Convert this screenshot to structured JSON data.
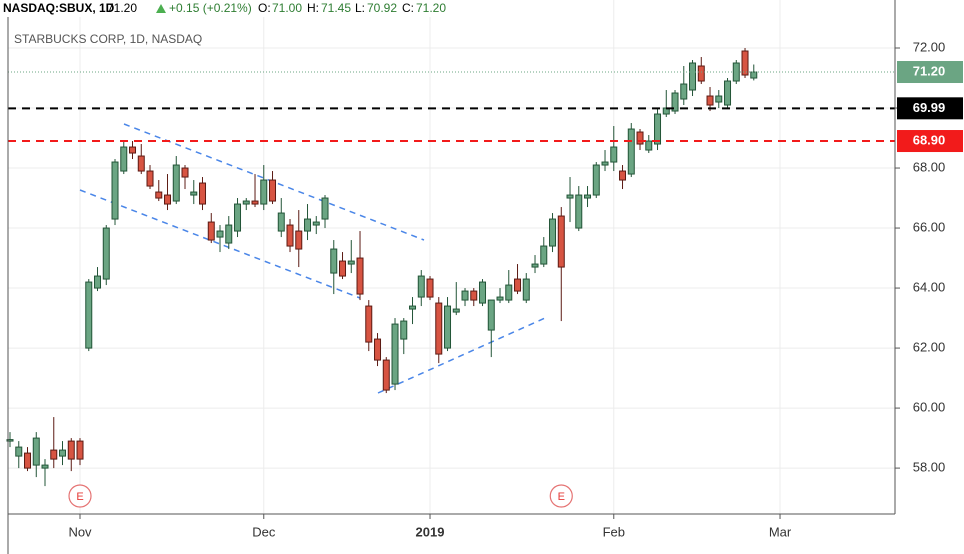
{
  "chart_data": {
    "type": "candlestick",
    "header": {
      "symbol": "NASDAQ:SBUX, 1D",
      "last": "71.20",
      "change": "+0.15 (+0.21%)",
      "o_label": "O:",
      "o": "71.00",
      "h_label": "H:",
      "h": "71.45",
      "l_label": "L:",
      "l": "70.92",
      "c_label": "C:",
      "c": "71.20"
    },
    "watermark": "STARBUCKS CORP, 1D, NASDAQ",
    "ylim": [
      56.47,
      73.6
    ],
    "yticks": [
      {
        "value": 58,
        "label": "58.00"
      },
      {
        "value": 60,
        "label": "60.00"
      },
      {
        "value": 62,
        "label": "62.00"
      },
      {
        "value": 64,
        "label": "64.00"
      },
      {
        "value": 66,
        "label": "66.00"
      },
      {
        "value": 68,
        "label": "68.00"
      },
      {
        "value": 70,
        "label": "70.00"
      },
      {
        "value": 72,
        "label": "72.00"
      }
    ],
    "xlim": [
      -0.23,
      101.14
    ],
    "xticks": [
      {
        "value": 8,
        "label": "Nov"
      },
      {
        "value": 29,
        "label": "Dec"
      },
      {
        "value": 48,
        "label": "2019",
        "bold": true
      },
      {
        "value": 69,
        "label": "Feb"
      },
      {
        "value": 88,
        "label": "Mar"
      }
    ],
    "grid": true,
    "up_color": "#6ba583",
    "up_border": "#225437",
    "down_color": "#d75442",
    "down_border": "#5b1a13",
    "ohlc": [
      [
        58.9,
        59.2,
        58.7,
        58.95
      ],
      [
        58.4,
        58.9,
        58.0,
        58.7
      ],
      [
        58.5,
        58.7,
        57.9,
        58.0
      ],
      [
        58.1,
        59.2,
        57.7,
        59.0
      ],
      [
        58.0,
        58.3,
        57.4,
        58.1
      ],
      [
        58.6,
        59.7,
        58.0,
        58.3
      ],
      [
        58.4,
        58.9,
        58.1,
        58.6
      ],
      [
        58.9,
        59.0,
        57.9,
        58.3
      ],
      [
        58.9,
        59.0,
        58.1,
        58.3
      ],
      [
        62.0,
        64.3,
        61.9,
        64.2
      ],
      [
        64.0,
        64.7,
        63.9,
        64.4
      ],
      [
        64.3,
        66.1,
        64.1,
        66.0
      ],
      [
        66.3,
        68.3,
        66.1,
        68.2
      ],
      [
        67.9,
        68.9,
        67.8,
        68.7
      ],
      [
        68.7,
        68.9,
        68.3,
        68.5
      ],
      [
        68.4,
        68.8,
        67.8,
        67.9
      ],
      [
        67.9,
        68.1,
        67.3,
        67.4
      ],
      [
        67.2,
        67.6,
        66.9,
        67.0
      ],
      [
        67.1,
        67.8,
        66.6,
        66.8
      ],
      [
        66.9,
        68.4,
        66.8,
        68.1
      ],
      [
        68.0,
        68.1,
        67.3,
        67.7
      ],
      [
        67.1,
        67.6,
        66.8,
        67.2
      ],
      [
        67.5,
        67.7,
        66.6,
        66.8
      ],
      [
        66.2,
        66.5,
        65.5,
        65.6
      ],
      [
        65.7,
        66.1,
        65.2,
        65.9
      ],
      [
        65.5,
        66.4,
        65.3,
        66.1
      ],
      [
        65.9,
        67.0,
        65.7,
        66.8
      ],
      [
        66.8,
        67.0,
        66.6,
        66.9
      ],
      [
        66.9,
        67.8,
        66.7,
        66.8
      ],
      [
        66.8,
        68.1,
        66.6,
        67.6
      ],
      [
        67.6,
        67.9,
        66.8,
        66.9
      ],
      [
        65.9,
        67.0,
        65.7,
        66.5
      ],
      [
        66.1,
        66.3,
        65.2,
        65.4
      ],
      [
        65.9,
        66.6,
        64.7,
        65.3
      ],
      [
        65.9,
        66.8,
        65.6,
        66.3
      ],
      [
        66.1,
        66.4,
        65.8,
        66.2
      ],
      [
        66.3,
        67.1,
        66.0,
        67.0
      ],
      [
        64.5,
        65.6,
        63.8,
        65.3
      ],
      [
        64.9,
        65.2,
        64.3,
        64.4
      ],
      [
        64.8,
        65.6,
        64.5,
        64.9
      ],
      [
        65.0,
        65.9,
        63.6,
        63.8
      ],
      [
        63.4,
        63.6,
        61.9,
        62.2
      ],
      [
        62.3,
        62.5,
        61.4,
        61.6
      ],
      [
        61.6,
        61.7,
        60.5,
        60.6
      ],
      [
        60.8,
        63.0,
        60.6,
        62.8
      ],
      [
        62.3,
        63.0,
        61.8,
        62.9
      ],
      [
        63.3,
        63.7,
        62.8,
        63.4
      ],
      [
        63.7,
        64.6,
        63.4,
        64.4
      ],
      [
        64.3,
        64.4,
        63.6,
        63.7
      ],
      [
        63.5,
        63.7,
        61.5,
        61.8
      ],
      [
        62.0,
        63.7,
        61.9,
        63.4
      ],
      [
        63.2,
        64.2,
        63.1,
        63.3
      ],
      [
        63.6,
        64.0,
        63.4,
        63.9
      ],
      [
        63.9,
        64.0,
        63.4,
        63.6
      ],
      [
        63.5,
        64.3,
        63.4,
        64.2
      ],
      [
        62.6,
        63.6,
        61.7,
        63.6
      ],
      [
        63.6,
        64.0,
        63.5,
        63.7
      ],
      [
        63.6,
        64.6,
        63.5,
        64.1
      ],
      [
        64.3,
        64.8,
        63.8,
        63.9
      ],
      [
        63.6,
        64.5,
        63.5,
        64.3
      ],
      [
        64.7,
        65.1,
        64.5,
        64.8
      ],
      [
        64.8,
        65.7,
        64.7,
        65.4
      ],
      [
        65.4,
        66.5,
        65.2,
        66.3
      ],
      [
        66.4,
        66.7,
        62.9,
        64.7
      ],
      [
        67.0,
        67.7,
        66.2,
        67.1
      ],
      [
        66.0,
        67.4,
        65.9,
        67.1
      ],
      [
        67.0,
        67.4,
        66.7,
        67.1
      ],
      [
        67.1,
        68.2,
        67.0,
        68.1
      ],
      [
        68.1,
        68.6,
        67.9,
        68.2
      ],
      [
        68.2,
        69.4,
        67.9,
        68.7
      ],
      [
        67.9,
        68.1,
        67.3,
        67.6
      ],
      [
        67.8,
        69.5,
        67.7,
        69.3
      ],
      [
        69.2,
        69.3,
        68.6,
        68.8
      ],
      [
        68.6,
        69.1,
        68.5,
        68.9
      ],
      [
        68.8,
        70.0,
        68.6,
        69.8
      ],
      [
        69.8,
        70.6,
        69.7,
        70.0
      ],
      [
        69.9,
        70.6,
        69.8,
        70.5
      ],
      [
        70.3,
        71.4,
        70.1,
        70.8
      ],
      [
        70.6,
        71.6,
        70.4,
        71.5
      ],
      [
        71.4,
        71.7,
        70.8,
        70.9
      ],
      [
        70.4,
        70.7,
        69.9,
        70.1
      ],
      [
        70.2,
        70.6,
        70.0,
        70.4
      ],
      [
        70.1,
        71.0,
        70.0,
        70.9
      ],
      [
        70.9,
        71.6,
        70.8,
        71.5
      ],
      [
        71.9,
        72.0,
        71.0,
        71.1
      ],
      [
        71.0,
        71.45,
        70.92,
        71.2
      ]
    ],
    "lines": [
      {
        "value": 69.99,
        "label": "69.99",
        "color": "#000000"
      },
      {
        "value": 68.9,
        "label": "68.90",
        "color": "#f21b1b"
      }
    ],
    "last_price": {
      "value": 71.2,
      "label": "71.20",
      "color": "#6ba583"
    },
    "events": [
      {
        "label": "E",
        "x": 8
      },
      {
        "label": "E",
        "x": 63
      }
    ]
  }
}
